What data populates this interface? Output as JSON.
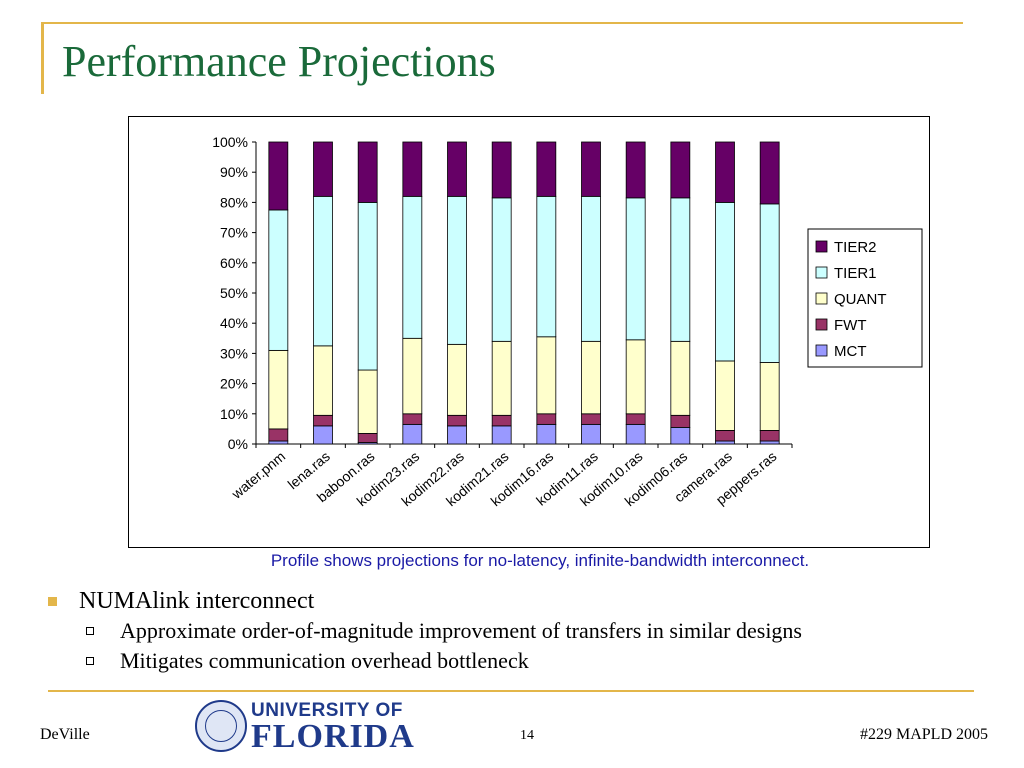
{
  "slide": {
    "title": "Performance Projections",
    "caption": "Profile shows projections for no-latency, infinite-bandwidth interconnect.",
    "bullets": [
      {
        "text": "NUMAlink interconnect",
        "children": [
          "Approximate order-of-magnitude improvement of transfers in similar designs",
          "Mitigates communication overhead bottleneck"
        ]
      }
    ]
  },
  "footer": {
    "left": "DeVille",
    "page": "14",
    "right": "#229 MAPLD 2005",
    "logo_top": "UNIVERSITY OF",
    "logo_bottom": "FLORIDA"
  },
  "colors": {
    "title": "#1a6a3a",
    "accent": "#e3b64a",
    "caption": "#1a1aa6"
  },
  "chart_data": {
    "type": "bar",
    "stacked": "percent",
    "categories": [
      "water.pnm",
      "lena.ras",
      "baboon.ras",
      "kodim23.ras",
      "kodim22.ras",
      "kodim21.ras",
      "kodim16.ras",
      "kodim11.ras",
      "kodim10.ras",
      "kodim06.ras",
      "camera.ras",
      "peppers.ras"
    ],
    "series": [
      {
        "name": "MCT",
        "color": "#9999ff",
        "values": [
          1,
          6,
          0.5,
          6.5,
          6,
          6,
          6.5,
          6.5,
          6.5,
          5.5,
          1,
          1
        ]
      },
      {
        "name": "FWT",
        "color": "#993366",
        "values": [
          4,
          3.5,
          3,
          3.5,
          3.5,
          3.5,
          3.5,
          3.5,
          3.5,
          4,
          3.5,
          3.5
        ]
      },
      {
        "name": "QUANT",
        "color": "#ffffcc",
        "values": [
          26,
          23,
          21,
          25,
          23.5,
          24.5,
          25.5,
          24,
          24.5,
          24.5,
          23,
          22.5
        ]
      },
      {
        "name": "TIER1",
        "color": "#ccffff",
        "values": [
          46.5,
          49.5,
          55.5,
          47,
          49,
          47.5,
          46.5,
          48,
          47,
          47.5,
          52.5,
          52.5
        ]
      },
      {
        "name": "TIER2",
        "color": "#660066",
        "values": [
          22.5,
          18,
          20,
          18,
          18,
          18.5,
          18,
          18,
          18.5,
          18.5,
          20,
          20.5
        ]
      }
    ],
    "yticks": [
      "0%",
      "10%",
      "20%",
      "30%",
      "40%",
      "50%",
      "60%",
      "70%",
      "80%",
      "90%",
      "100%"
    ],
    "ylim": [
      0,
      100
    ],
    "legend": {
      "placement": "right",
      "order": [
        "TIER2",
        "TIER1",
        "QUANT",
        "FWT",
        "MCT"
      ]
    },
    "grid": false
  }
}
